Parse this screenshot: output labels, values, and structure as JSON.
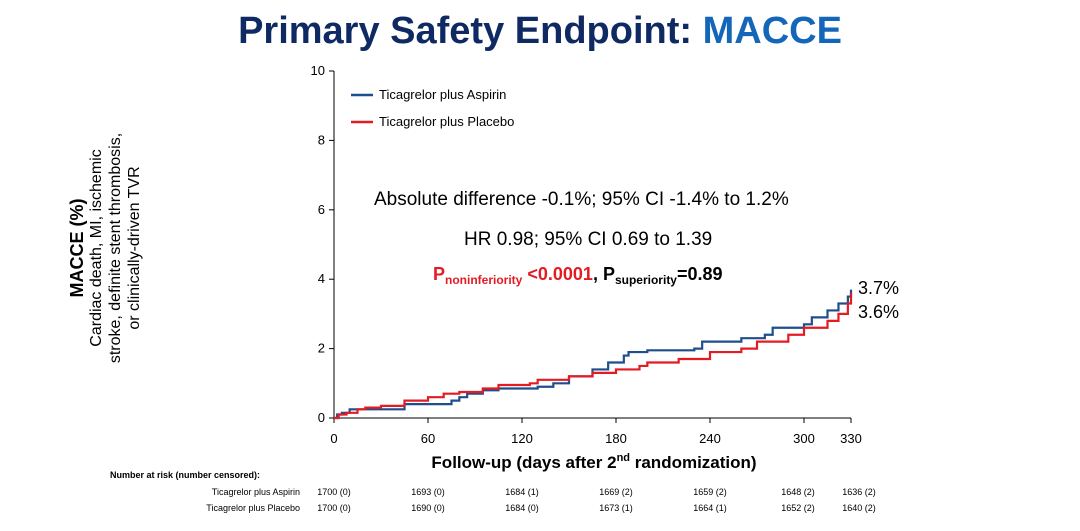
{
  "title": {
    "prefix": "Primary Safety Endpoint: ",
    "highlight": "MACCE"
  },
  "chart_data": {
    "type": "line",
    "subtype": "kaplan-meier-step",
    "ylabel_lines": [
      "MACCE (%)",
      "Cardiac death, MI, ischemic",
      "stroke, definite stent thrombosis,",
      "or clinically-driven TVR"
    ],
    "xlabel": {
      "main": "Follow-up (days after 2",
      "sup": "nd",
      "tail": " randomization)"
    },
    "xlim": [
      0,
      330
    ],
    "ylim": [
      0,
      10
    ],
    "x_ticks": [
      "0",
      "60",
      "120",
      "180",
      "240",
      "300",
      "330"
    ],
    "y_ticks": [
      "0",
      "2",
      "4",
      "6",
      "8",
      "10"
    ],
    "legend_position": "top-left",
    "grid": false,
    "series": [
      {
        "name": "Ticagrelor plus Aspirin",
        "color": "#1f4e8c",
        "end_label": "3.7%",
        "points": [
          [
            0,
            0
          ],
          [
            2,
            0.1
          ],
          [
            5,
            0.15
          ],
          [
            10,
            0.25
          ],
          [
            20,
            0.25
          ],
          [
            30,
            0.25
          ],
          [
            45,
            0.4
          ],
          [
            70,
            0.4
          ],
          [
            75,
            0.5
          ],
          [
            80,
            0.6
          ],
          [
            85,
            0.7
          ],
          [
            95,
            0.8
          ],
          [
            105,
            0.85
          ],
          [
            130,
            0.9
          ],
          [
            140,
            1.0
          ],
          [
            150,
            1.2
          ],
          [
            165,
            1.4
          ],
          [
            175,
            1.6
          ],
          [
            185,
            1.8
          ],
          [
            188,
            1.9
          ],
          [
            200,
            1.95
          ],
          [
            230,
            2.0
          ],
          [
            235,
            2.2
          ],
          [
            260,
            2.3
          ],
          [
            275,
            2.4
          ],
          [
            280,
            2.6
          ],
          [
            300,
            2.7
          ],
          [
            305,
            2.9
          ],
          [
            315,
            3.1
          ],
          [
            322,
            3.3
          ],
          [
            328,
            3.5
          ],
          [
            330,
            3.7
          ]
        ]
      },
      {
        "name": "Ticagrelor plus Placebo",
        "color": "#e31b23",
        "end_label": "3.6%",
        "points": [
          [
            0,
            0
          ],
          [
            3,
            0.1
          ],
          [
            8,
            0.15
          ],
          [
            15,
            0.25
          ],
          [
            20,
            0.3
          ],
          [
            30,
            0.35
          ],
          [
            45,
            0.5
          ],
          [
            60,
            0.6
          ],
          [
            70,
            0.7
          ],
          [
            80,
            0.75
          ],
          [
            95,
            0.85
          ],
          [
            105,
            0.95
          ],
          [
            125,
            1.0
          ],
          [
            130,
            1.1
          ],
          [
            150,
            1.2
          ],
          [
            165,
            1.3
          ],
          [
            180,
            1.4
          ],
          [
            195,
            1.5
          ],
          [
            200,
            1.6
          ],
          [
            220,
            1.7
          ],
          [
            240,
            1.9
          ],
          [
            260,
            2.0
          ],
          [
            270,
            2.2
          ],
          [
            290,
            2.4
          ],
          [
            300,
            2.6
          ],
          [
            315,
            2.8
          ],
          [
            322,
            3.0
          ],
          [
            328,
            3.3
          ],
          [
            330,
            3.6
          ]
        ]
      }
    ]
  },
  "annotations": {
    "abs_diff": "Absolute difference -0.1%; 95% CI -1.4% to 1.2%",
    "hr": "HR 0.98; 95% CI 0.69 to 1.39",
    "p_noninf_base": "P",
    "p_noninf_sub": "noninferiority",
    "p_noninf_val": " <0.0001",
    "sep": ", ",
    "p_sup_base": "P",
    "p_sup_sub": "superiority",
    "p_sup_val": "=0.89"
  },
  "risk_table": {
    "header": "Number at risk (number censored):",
    "rows": [
      {
        "label": "Ticagrelor plus Aspirin",
        "values": [
          "1700 (0)",
          "1693 (0)",
          "1684 (1)",
          "1669 (2)",
          "1659 (2)",
          "1648 (2)",
          "1636 (2)"
        ]
      },
      {
        "label": "Ticagrelor plus Placebo",
        "values": [
          "1700 (0)",
          "1690 (0)",
          "1684 (0)",
          "1673 (1)",
          "1664 (1)",
          "1652 (2)",
          "1640 (2)"
        ]
      }
    ]
  }
}
